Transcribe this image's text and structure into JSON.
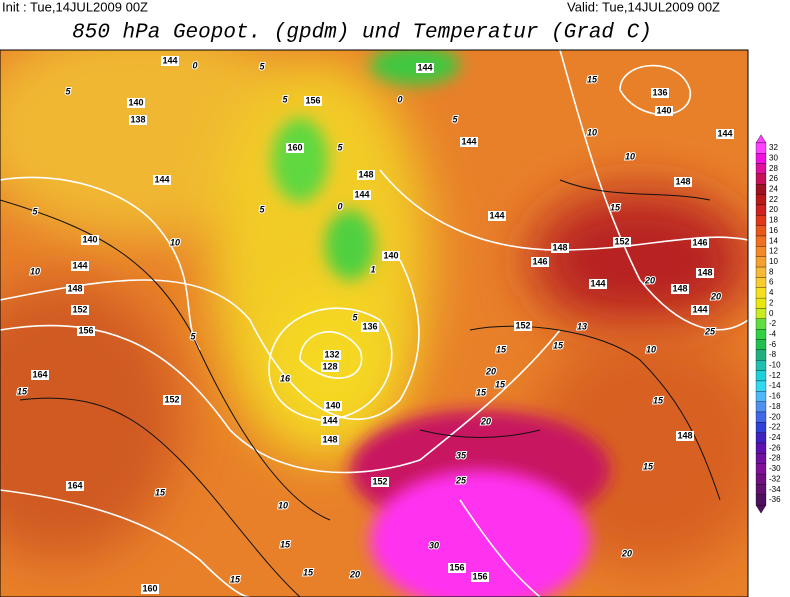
{
  "header": {
    "init": "Init : Tue,14JUL2009 00Z",
    "valid": "Valid: Tue,14JUL2009 00Z",
    "title": "850 hPa Geopot. (gpdm) und Temperatur (Grad C)"
  },
  "colorbar": {
    "ticks": [
      32,
      30,
      28,
      26,
      24,
      22,
      20,
      18,
      16,
      14,
      12,
      10,
      8,
      6,
      4,
      2,
      0,
      -2,
      -4,
      -6,
      -8,
      -10,
      -12,
      -14,
      -16,
      -18,
      -20,
      -22,
      -24,
      -26,
      -28,
      -30,
      -32,
      -34,
      -36
    ],
    "colors": [
      "#ff40ff",
      "#f010e0",
      "#e0109a",
      "#c8105a",
      "#a01020",
      "#b81818",
      "#d02020",
      "#e03818",
      "#e85818",
      "#ee7020",
      "#f28828",
      "#f5a030",
      "#f8b838",
      "#f8cc30",
      "#f5e020",
      "#e8e810",
      "#c8ec20",
      "#60e040",
      "#30d040",
      "#20c050",
      "#20b080",
      "#20c0b0",
      "#20d0d8",
      "#30d8f0",
      "#50b8f8",
      "#5090f0",
      "#4068e8",
      "#3040d8",
      "#4020c0",
      "#6010b0",
      "#7010a0",
      "#801098",
      "#701080",
      "#601070",
      "#501060"
    ]
  },
  "map_labels": [
    "144",
    "0",
    "5",
    "144",
    "15",
    "136",
    "5",
    "140",
    "156",
    "5",
    "0",
    "138",
    "5",
    "140",
    "144",
    "144",
    "10",
    "160",
    "5",
    "10",
    "144",
    "148",
    "144",
    "148",
    "0",
    "5",
    "5",
    "144",
    "15",
    "140",
    "10",
    "140",
    "152",
    "146",
    "148",
    "146",
    "144",
    "10",
    "1",
    "20",
    "148",
    "148",
    "148",
    "144",
    "20",
    "152",
    "5",
    "136",
    "144",
    "25",
    "152",
    "13",
    "156",
    "5",
    "15",
    "15",
    "10",
    "132",
    "128",
    "16",
    "164",
    "15",
    "20",
    "15",
    "152",
    "15",
    "15",
    "140",
    "144",
    "20",
    "148",
    "148",
    "35",
    "15",
    "152",
    "25",
    "164",
    "15",
    "10",
    "15",
    "30",
    "20",
    "156",
    "156",
    "15",
    "15",
    "20",
    "160"
  ]
}
